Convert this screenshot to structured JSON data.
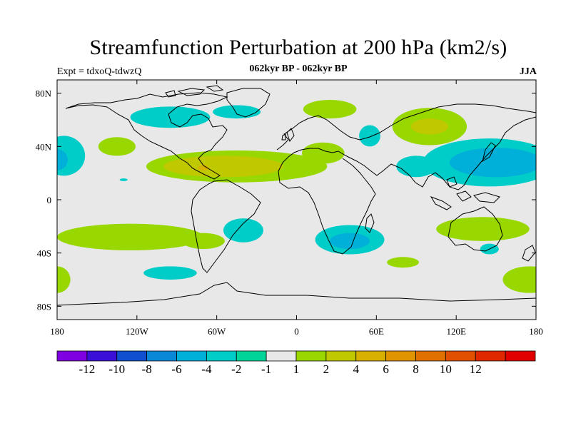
{
  "header": {
    "title": "Streamfunction Perturbation at 200 hPa (km2/s)",
    "subtitle": "062kyr BP - 062kyr BP",
    "experiment": "Expt = tdxoQ-tdwzQ",
    "season": "JJA"
  },
  "map": {
    "projection": "cylindrical equidistant",
    "lon_range": [
      -180,
      180
    ],
    "lat_range": [
      -90,
      90
    ],
    "background_color": "#e8e8e8",
    "lat_ticks": [
      {
        "value": 80,
        "label": "80N"
      },
      {
        "value": 40,
        "label": "40N"
      },
      {
        "value": 0,
        "label": "0"
      },
      {
        "value": -40,
        "label": "40S"
      },
      {
        "value": -80,
        "label": "80S"
      }
    ],
    "lon_ticks": [
      {
        "value": -180,
        "label": "180"
      },
      {
        "value": -120,
        "label": "120W"
      },
      {
        "value": -60,
        "label": "60W"
      },
      {
        "value": 0,
        "label": "0"
      },
      {
        "value": 60,
        "label": "60E"
      },
      {
        "value": 120,
        "label": "120E"
      },
      {
        "value": 180,
        "label": "180"
      }
    ],
    "anomalies": [
      {
        "name": "arctic-canada-negative",
        "lon": -95,
        "lat": 62,
        "rx": 30,
        "ry": 8,
        "level": -2
      },
      {
        "name": "greenland-negative",
        "lon": -45,
        "lat": 66,
        "rx": 18,
        "ry": 5,
        "level": -2
      },
      {
        "name": "scandinavia-positive",
        "lon": 25,
        "lat": 68,
        "rx": 20,
        "ry": 7,
        "level": 1
      },
      {
        "name": "siberia-positive",
        "lon": 100,
        "lat": 55,
        "rx": 28,
        "ry": 14,
        "level": 1
      },
      {
        "name": "siberia-core",
        "lon": 100,
        "lat": 55,
        "rx": 14,
        "ry": 6,
        "level": 2
      },
      {
        "name": "caspian-negative",
        "lon": 55,
        "lat": 48,
        "rx": 8,
        "ry": 8,
        "level": -2
      },
      {
        "name": "north-pacific-west-negative",
        "lon": -175,
        "lat": 33,
        "rx": 16,
        "ry": 15,
        "level": -2
      },
      {
        "name": "north-pacific-west-core",
        "lon": -180,
        "lat": 30,
        "rx": 8,
        "ry": 8,
        "level": -4
      },
      {
        "name": "north-pacific-east-positive",
        "lon": -135,
        "lat": 40,
        "rx": 14,
        "ry": 7,
        "level": 1
      },
      {
        "name": "subtropical-atlantic-band",
        "lon": -45,
        "lat": 25,
        "rx": 68,
        "ry": 12,
        "level": 1
      },
      {
        "name": "subtropical-atlantic-core",
        "lon": -55,
        "lat": 25,
        "rx": 45,
        "ry": 8,
        "level": 2
      },
      {
        "name": "subtropical-atlantic-peak",
        "lon": -70,
        "lat": 24,
        "rx": 4,
        "ry": 2,
        "level": 4
      },
      {
        "name": "north-africa-positive",
        "lon": 20,
        "lat": 35,
        "rx": 16,
        "ry": 8,
        "level": 1
      },
      {
        "name": "asia-pacific-negative",
        "lon": 145,
        "lat": 28,
        "rx": 50,
        "ry": 18,
        "level": -2
      },
      {
        "name": "asia-pacific-core",
        "lon": 150,
        "lat": 28,
        "rx": 35,
        "ry": 11,
        "level": -4
      },
      {
        "name": "central-asia-negative",
        "lon": 90,
        "lat": 25,
        "rx": 15,
        "ry": 8,
        "level": -2
      },
      {
        "name": "south-atlantic-negative",
        "lon": -40,
        "lat": -23,
        "rx": 15,
        "ry": 9,
        "level": -2
      },
      {
        "name": "south-africa-negative",
        "lon": 40,
        "lat": -30,
        "rx": 26,
        "ry": 11,
        "level": -2
      },
      {
        "name": "south-africa-core",
        "lon": 40,
        "lat": -31,
        "rx": 15,
        "ry": 6,
        "level": -4
      },
      {
        "name": "south-pacific-positive",
        "lon": -125,
        "lat": -28,
        "rx": 55,
        "ry": 10,
        "level": 1
      },
      {
        "name": "south-america-positive",
        "lon": -70,
        "lat": -31,
        "rx": 16,
        "ry": 6,
        "level": 1
      },
      {
        "name": "australia-positive",
        "lon": 140,
        "lat": -22,
        "rx": 35,
        "ry": 9,
        "level": 1
      },
      {
        "name": "tasman-negative",
        "lon": 145,
        "lat": -37,
        "rx": 7,
        "ry": 4,
        "level": -2
      },
      {
        "name": "southern-ocean-negative",
        "lon": -95,
        "lat": -55,
        "rx": 20,
        "ry": 5,
        "level": -2
      },
      {
        "name": "southern-indian-positive",
        "lon": 80,
        "lat": -47,
        "rx": 12,
        "ry": 4,
        "level": 1
      },
      {
        "name": "southern-ocean-east-positive",
        "lon": 175,
        "lat": -60,
        "rx": 20,
        "ry": 10,
        "level": 1
      },
      {
        "name": "southern-ocean-west-positive",
        "lon": -180,
        "lat": -60,
        "rx": 10,
        "ry": 10,
        "level": 1
      },
      {
        "name": "tropical-pacific-speck",
        "lon": -130,
        "lat": 15,
        "rx": 3,
        "ry": 1,
        "level": -2
      }
    ]
  },
  "colorbar": {
    "colors": [
      "#7f00e0",
      "#3a10d8",
      "#1050d0",
      "#0a88d8",
      "#00b0d8",
      "#00ccc8",
      "#00d498",
      "#e8e8e8",
      "#98d800",
      "#c0c800",
      "#d8b000",
      "#e09400",
      "#e07000",
      "#e05000",
      "#e02800",
      "#e00000"
    ],
    "labels": [
      "-12",
      "-10",
      "-8",
      "-6",
      "-4",
      "-2",
      "-1",
      "1",
      "2",
      "4",
      "6",
      "8",
      "10",
      "12"
    ]
  }
}
